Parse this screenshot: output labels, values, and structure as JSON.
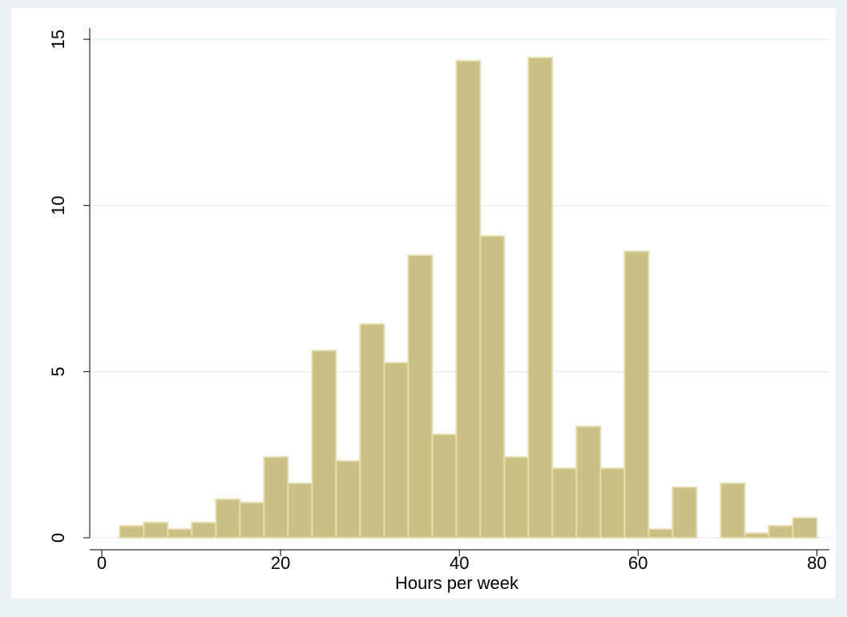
{
  "chart_data": {
    "type": "histogram",
    "xlabel": "Hours per week",
    "bins": [
      2,
      4.69,
      7.38,
      10.07,
      12.76,
      15.45,
      18.14,
      20.83,
      23.52,
      26.21,
      28.9,
      31.59,
      34.28,
      36.97,
      39.66,
      42.34,
      45.03,
      47.72,
      50.41,
      53.1,
      55.79,
      58.48,
      61.17,
      63.86,
      66.55,
      69.24,
      71.93,
      74.62,
      77.31,
      80
    ],
    "values": [
      0.36,
      0.46,
      0.26,
      0.46,
      1.16,
      1.06,
      2.43,
      1.64,
      5.63,
      2.31,
      6.43,
      5.27,
      8.5,
      3.11,
      14.35,
      9.08,
      2.43,
      14.45,
      2.09,
      3.35,
      2.09,
      8.62,
      0.26,
      1.52,
      0,
      1.64,
      0.14,
      0.36,
      0.6
    ],
    "color": "#cbc083",
    "xlim": [
      -1.35,
      81.4
    ],
    "ylim": [
      0,
      15.34
    ],
    "xticks": [
      0,
      20,
      40,
      60,
      80
    ],
    "yticks": [
      0,
      5,
      10,
      15
    ],
    "grid": true
  }
}
